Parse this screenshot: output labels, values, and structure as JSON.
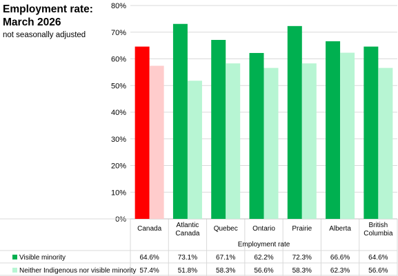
{
  "title_lines": [
    "Employment rate:",
    "March 2026"
  ],
  "subtitle": "not seasonally adjusted",
  "colors": {
    "visible_minority": "#00b050",
    "visible_minority_highlight": "#ff0000",
    "neither": "#b7f5d3",
    "neither_highlight": "#ffcccc",
    "grid": "#d9d9d9"
  },
  "chart_data": {
    "type": "bar",
    "categories": [
      [
        "Canada"
      ],
      [
        "Atlantic",
        "Canada"
      ],
      [
        "Quebec"
      ],
      [
        "Ontario"
      ],
      [
        "Prairie"
      ],
      [
        "Alberta"
      ],
      [
        "British",
        "Columbia"
      ]
    ],
    "series": [
      {
        "name": "Visible minority",
        "values": [
          64.6,
          73.1,
          67.1,
          62.2,
          72.3,
          66.6,
          64.6
        ],
        "labels": [
          "64.6%",
          "73.1%",
          "67.1%",
          "62.2%",
          "72.3%",
          "66.6%",
          "64.6%"
        ]
      },
      {
        "name": "Neither Indigenous nor visible minority",
        "values": [
          57.4,
          51.8,
          58.3,
          56.6,
          58.3,
          62.3,
          56.6
        ],
        "labels": [
          "57.4%",
          "51.8%",
          "58.3%",
          "56.6%",
          "58.3%",
          "62.3%",
          "56.6%"
        ]
      }
    ],
    "ylim": [
      0,
      80
    ],
    "yticks": [
      "0%",
      "10%",
      "20%",
      "30%",
      "40%",
      "50%",
      "60%",
      "70%",
      "80%"
    ],
    "xlabel": "Employment rate",
    "grid": true,
    "legend": "data-table-below",
    "highlight_category": 0
  }
}
